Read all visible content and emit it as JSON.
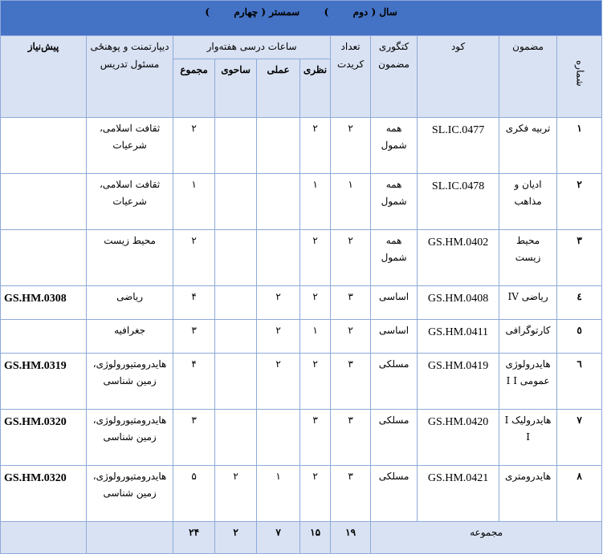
{
  "banner": {
    "year_label": "سال",
    "year_value": "دوم",
    "semester_label": "سمستر",
    "semester_value": "چهارم"
  },
  "headers": {
    "number": "شماره",
    "subject": "مضمون",
    "code": "کود",
    "category": "کتگوری مضمون",
    "credits": "تعداد کریدت",
    "weekly_hours": "ساعات درسی هفته‌وار",
    "theory": "نظری",
    "practical": "عملی",
    "field": "ساحوی",
    "total": "مجموع",
    "department": "دیپارتمنت و پوهنځی مسئول تدریس",
    "prerequisite": "پیش‌نیاز"
  },
  "rows": [
    {
      "num": "١",
      "subject": "تربیه فکری",
      "code": "SL.IC.0477",
      "category": "همه شمول",
      "credits": "٢",
      "theory": "٢",
      "practical": "",
      "field": "",
      "total": "٢",
      "department": "ثقافت اسلامی، شرعیات",
      "prerequisite": ""
    },
    {
      "num": "٢",
      "subject": "ادیان و مذاهب",
      "code": "SL.IC.0478",
      "category": "همه شمول",
      "credits": "١",
      "theory": "١",
      "practical": "",
      "field": "",
      "total": "١",
      "department": "ثقافت اسلامی، شرعیات",
      "prerequisite": ""
    },
    {
      "num": "٣",
      "subject": "محیط زیست",
      "code": "GS.HM.0402",
      "category": "همه شمول",
      "credits": "٢",
      "theory": "٢",
      "practical": "",
      "field": "",
      "total": "٢",
      "department": "محیط زیست",
      "prerequisite": ""
    },
    {
      "num": "٤",
      "subject": "ریاضی IV",
      "code": "GS.HM.0408",
      "category": "اساسی",
      "credits": "٣",
      "theory": "٢",
      "practical": "٢",
      "field": "",
      "total": "۴",
      "department": "ریاضی",
      "prerequisite": "GS.HM.0308"
    },
    {
      "num": "٥",
      "subject": "کارتوگرافی",
      "code": "GS.HM.0411",
      "category": "اساسی",
      "credits": "٢",
      "theory": "١",
      "practical": "٢",
      "field": "",
      "total": "٣",
      "department": "جغرافیه",
      "prerequisite": ""
    },
    {
      "num": "٦",
      "subject": "هایدرولوژی عمومی I I",
      "code": "GS.HM.0419",
      "category": "مسلکی",
      "credits": "٣",
      "theory": "٢",
      "practical": "٢",
      "field": "",
      "total": "۴",
      "department": "هایدرومتیورولوژی، زمین شناسی",
      "prerequisite": "GS.HM.0319"
    },
    {
      "num": "٧",
      "subject": "هایدرولیک I I",
      "code": "GS.HM.0420",
      "category": "مسلکی",
      "credits": "٣",
      "theory": "٣",
      "practical": "",
      "field": "",
      "total": "٣",
      "department": "هایدرومتیورولوژی، زمین شناسی",
      "prerequisite": "GS.HM.0320"
    },
    {
      "num": "٨",
      "subject": "هایدرومتری",
      "code": "GS.HM.0421",
      "category": "مسلکی",
      "credits": "٣",
      "theory": "٢",
      "practical": "١",
      "field": "٢",
      "total": "۵",
      "department": "هایدرومتیورولوژی، زمین شناسی",
      "prerequisite": "GS.HM.0320"
    }
  ],
  "totals": {
    "label": "مجموعه",
    "credits": "١٩",
    "theory": "١۵",
    "practical": "٧",
    "field": "٢",
    "total": "٢۴"
  }
}
